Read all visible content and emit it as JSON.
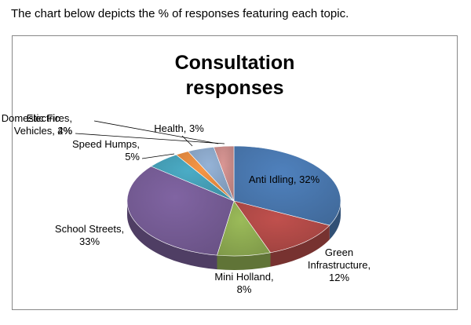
{
  "intro_text": "The chart below depicts the % of responses featuring each topic.",
  "chart_data": {
    "type": "pie",
    "title": "Consultation responses",
    "title_lines": [
      "Consultation",
      "responses"
    ],
    "slices": [
      {
        "name": "Anti Idling",
        "value": 32,
        "label_lines": [
          "Anti Idling, 32%"
        ],
        "color": "#4f81bd"
      },
      {
        "name": "Green Infrastructure",
        "value": 12,
        "label_lines": [
          "Green",
          "Infrastructure,",
          "12%"
        ],
        "color": "#c0504d"
      },
      {
        "name": "Mini Holland",
        "value": 8,
        "label_lines": [
          "Mini Holland,",
          "8%"
        ],
        "color": "#9bbb59"
      },
      {
        "name": "School Streets",
        "value": 33,
        "label_lines": [
          "School Streets,",
          "33%"
        ],
        "color": "#8064a2"
      },
      {
        "name": "Speed Humps",
        "value": 5,
        "label_lines": [
          "Speed Humps,",
          "5%"
        ],
        "color": "#4bacc6"
      },
      {
        "name": "Domestic Fires",
        "value": 2,
        "label_lines": [
          "Domestic Fires,",
          "2%"
        ],
        "color": "#f79646"
      },
      {
        "name": "Electric Vehicles",
        "value": 4,
        "label_lines": [
          "Electric",
          "Vehicles, 4%"
        ],
        "color": "#95b3d7"
      },
      {
        "name": "Health",
        "value": 3,
        "label_lines": [
          "Health, 3%"
        ],
        "color": "#d99694"
      }
    ]
  }
}
